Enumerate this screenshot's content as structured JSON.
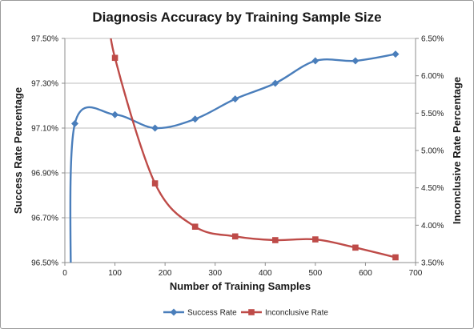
{
  "chart_data": {
    "type": "line",
    "title": "Diagnosis Accuracy by Training Sample Size",
    "xlabel": "Number of Training Samples",
    "ylabel": "Success Rate Percentage",
    "y2label": "Inconclusive Rate Percentage",
    "xlim": [
      0,
      700
    ],
    "ylim": [
      96.5,
      97.5
    ],
    "y2lim": [
      3.5,
      6.5
    ],
    "x_ticks": [
      "0",
      "100",
      "200",
      "300",
      "400",
      "500",
      "600",
      "700"
    ],
    "y_ticks": [
      "96.50%",
      "96.70%",
      "96.90%",
      "97.10%",
      "97.30%",
      "97.50%"
    ],
    "y2_ticks": [
      "3.50%",
      "4.00%",
      "4.50%",
      "5.00%",
      "5.50%",
      "6.00%",
      "6.50%"
    ],
    "grid": true,
    "legend_position": "bottom",
    "series": [
      {
        "name": "Success Rate",
        "axis": "left",
        "color": "#4a7ebb",
        "marker": "diamond",
        "x": [
          20,
          100,
          180,
          260,
          340,
          420,
          500,
          580,
          660
        ],
        "y": [
          97.12,
          97.16,
          97.1,
          97.14,
          97.23,
          97.3,
          97.4,
          97.4,
          97.43
        ]
      },
      {
        "name": "Inconclusive Rate",
        "axis": "right",
        "color": "#be4b48",
        "marker": "square",
        "x": [
          100,
          180,
          260,
          340,
          420,
          500,
          580,
          660
        ],
        "y": [
          6.24,
          4.56,
          3.98,
          3.85,
          3.8,
          3.81,
          3.7,
          3.57
        ]
      }
    ]
  }
}
